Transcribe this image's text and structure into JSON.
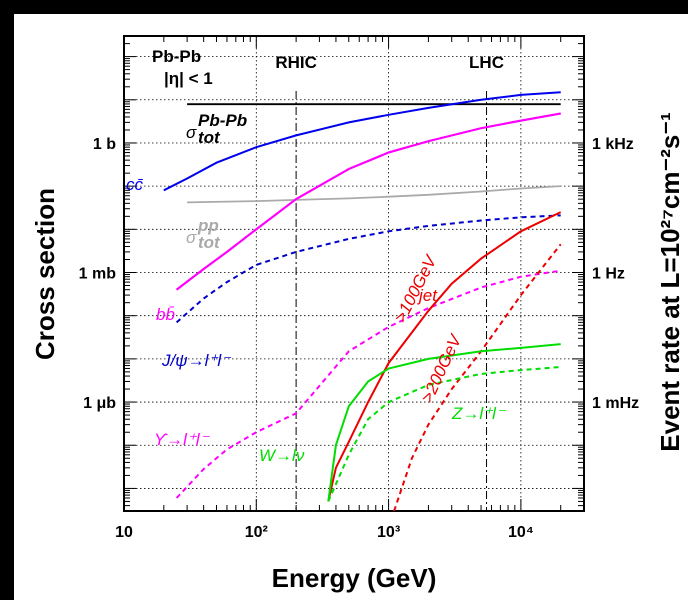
{
  "chart_data": {
    "type": "line",
    "system_label": "Pb-Pb",
    "eta_cut_label": "|η| < 1",
    "xlabel": "Energy (GeV)",
    "ylabel": "Cross section",
    "ylabel_right": "Event rate at L=10²⁷cm⁻²s⁻¹",
    "x_scale": "log",
    "y_scale": "log",
    "xlim": [
      10,
      30000
    ],
    "ylim_barn": [
      3e-09,
      300
    ],
    "grid": "dotted",
    "x_tick_labels": [
      "10",
      "10²",
      "10³",
      "10⁴"
    ],
    "y_tick_labels_left": [
      {
        "value": 1,
        "label": "1 b"
      },
      {
        "value": 0.001,
        "label": "1 mb"
      },
      {
        "value": 1e-06,
        "label": "1 μb"
      }
    ],
    "y_tick_labels_right": [
      {
        "value": 1,
        "label": "1 kHz"
      },
      {
        "value": 0.001,
        "label": "1 Hz"
      },
      {
        "value": 1e-06,
        "label": "1 mHz"
      }
    ],
    "energy_markers": [
      {
        "label": "RHIC",
        "x": 200
      },
      {
        "label": "LHC",
        "x": 5500
      }
    ],
    "series": [
      {
        "name": "σ_tot^Pb-Pb",
        "label_main": "σ",
        "label_sub": "tot",
        "label_sup": "Pb-Pb",
        "color": "#000000",
        "style": "solid",
        "x": [
          30,
          20000
        ],
        "y": [
          7.9,
          7.9
        ]
      },
      {
        "name": "cc̄",
        "label": "cc̄",
        "color": "#0000ee",
        "style": "solid",
        "x": [
          20,
          30,
          50,
          100,
          200,
          500,
          1000,
          2000,
          5000,
          10000,
          20000
        ],
        "y": [
          0.08,
          0.15,
          0.35,
          0.8,
          1.5,
          3,
          4.5,
          6.5,
          10,
          13,
          15
        ]
      },
      {
        "name": "cc̄-continuation",
        "color": "#ff00ff",
        "style": "solid",
        "x": [
          25,
          40,
          60,
          100,
          200,
          500,
          1000,
          2000,
          5000,
          10000,
          20000
        ],
        "y": [
          0.0004,
          0.0012,
          0.003,
          0.01,
          0.05,
          0.25,
          0.6,
          1.1,
          2.2,
          3.3,
          4.8
        ]
      },
      {
        "name": "σ_tot^pp",
        "label_main": "σ",
        "label_sub": "tot",
        "label_sup": "pp",
        "color": "#aaaaaa",
        "style": "solid",
        "x": [
          30,
          100,
          200,
          500,
          1000,
          2000,
          5000,
          10000,
          20000
        ],
        "y": [
          0.042,
          0.045,
          0.048,
          0.052,
          0.057,
          0.063,
          0.075,
          0.088,
          0.1
        ]
      },
      {
        "name": "bb̄",
        "label": "bb̄",
        "color": "#ff00ff",
        "style": "solid",
        "x": [
          25,
          40,
          60,
          100,
          200,
          500,
          1000,
          2000,
          5000,
          10000,
          20000
        ],
        "y": [
          0.0004,
          0.0012,
          0.003,
          0.01,
          0.05,
          0.25,
          0.6,
          1.1,
          2.2,
          3.3,
          4.8
        ]
      },
      {
        "name": "J/ψ→l⁺l⁻",
        "label": "J/ψ→l⁺l⁻",
        "color": "#0000cc",
        "style": "dashed",
        "x": [
          25,
          40,
          60,
          100,
          200,
          500,
          1000,
          2000,
          5000,
          10000,
          20000
        ],
        "y": [
          7e-05,
          0.00025,
          0.0006,
          0.0015,
          0.003,
          0.006,
          0.009,
          0.012,
          0.016,
          0.019,
          0.021
        ]
      },
      {
        "name": "ϒ→l⁺l⁻",
        "label": "ϒ→l⁺l⁻",
        "color": "#ff00ff",
        "style": "dashed",
        "x": [
          25,
          40,
          60,
          100,
          200,
          500,
          1000,
          2000,
          5000,
          10000,
          20000
        ],
        "y": [
          6e-09,
          2.8e-08,
          8e-08,
          2e-07,
          5.5e-07,
          1.5e-05,
          5.5e-05,
          0.00015,
          0.00045,
          0.0008,
          0.0011
        ]
      },
      {
        "name": "jet >100GeV",
        "label": "jet",
        "curve_label": ">100GeV",
        "color": "#ee0000",
        "style": "solid",
        "x": [
          350,
          400,
          500,
          700,
          1000,
          2000,
          3000,
          5000,
          10000,
          20000
        ],
        "y": [
          5e-09,
          3e-08,
          1.2e-07,
          1e-06,
          8e-06,
          0.00013,
          0.00055,
          0.0021,
          0.009,
          0.025
        ]
      },
      {
        "name": "jet >200GeV",
        "curve_label": ">200GeV",
        "color": "#ee0000",
        "style": "dashed",
        "x": [
          1100,
          1500,
          2000,
          3000,
          5000,
          10000,
          20000
        ],
        "y": [
          3e-09,
          5e-08,
          3e-07,
          2e-06,
          1.5e-05,
          0.0003,
          0.0045
        ]
      },
      {
        "name": "W→lν",
        "label": "W→lν",
        "color": "#00dd00",
        "style": "solid",
        "x": [
          350,
          400,
          500,
          700,
          1000,
          2000,
          5000,
          10000,
          20000
        ],
        "y": [
          5e-09,
          1e-07,
          8e-07,
          3e-06,
          6e-06,
          1e-05,
          1.5e-05,
          1.8e-05,
          2.2e-05
        ]
      },
      {
        "name": "Z→l⁺l⁻",
        "label": "Z→l⁺l⁻",
        "color": "#00dd00",
        "style": "dashed",
        "x": [
          350,
          500,
          700,
          1000,
          2000,
          5000,
          10000,
          20000
        ],
        "y": [
          5e-09,
          6e-08,
          4e-07,
          1e-06,
          2.5e-06,
          4.5e-06,
          5.5e-06,
          6.5e-06
        ]
      }
    ]
  }
}
